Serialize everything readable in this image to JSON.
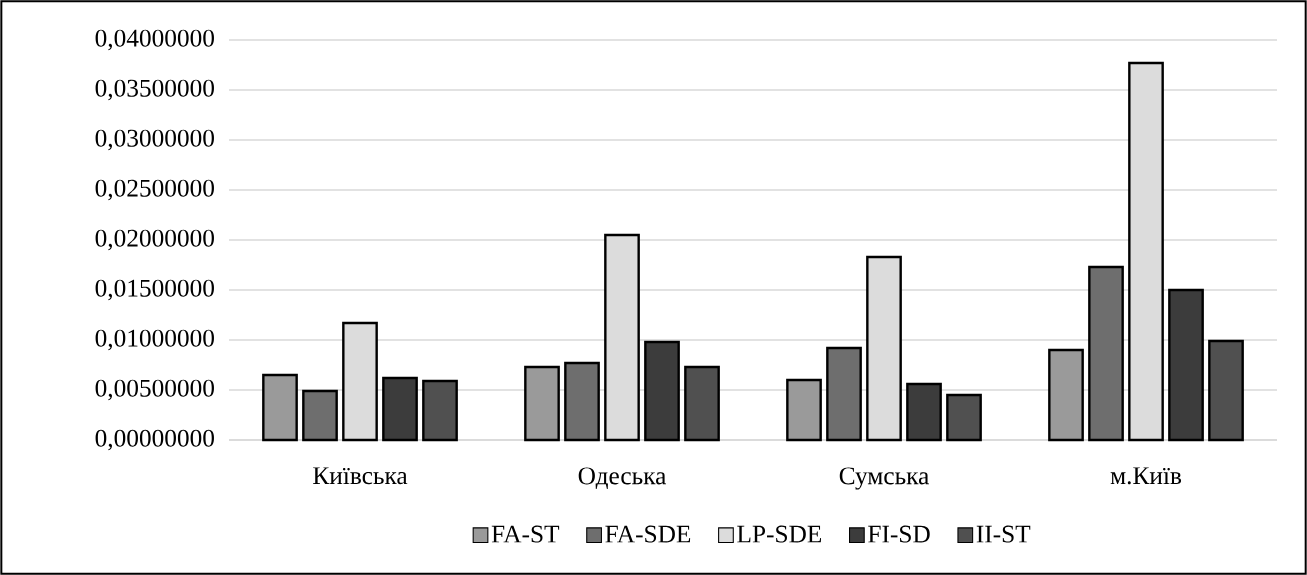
{
  "chart_data": {
    "type": "bar",
    "categories": [
      "Київська",
      "Одеська",
      "Сумська",
      "м.Київ"
    ],
    "series": [
      {
        "name": "FA-ST",
        "color": "#9a9a9a",
        "values": [
          0.0065,
          0.0073,
          0.006,
          0.009
        ]
      },
      {
        "name": "FA-SDE",
        "color": "#6e6e6e",
        "values": [
          0.0049,
          0.0077,
          0.0092,
          0.0173
        ]
      },
      {
        "name": "LP-SDE",
        "color": "#dcdcdc",
        "values": [
          0.0117,
          0.0205,
          0.0183,
          0.0377
        ]
      },
      {
        "name": "FI-SD",
        "color": "#3c3c3c",
        "values": [
          0.0062,
          0.0098,
          0.0056,
          0.015
        ]
      },
      {
        "name": "II-ST",
        "color": "#505050",
        "values": [
          0.0059,
          0.0073,
          0.0045,
          0.0099
        ]
      }
    ],
    "ylim": [
      0,
      0.04
    ],
    "yticks": [
      {
        "value": 0,
        "label": "0,00000000"
      },
      {
        "value": 0.005,
        "label": "0,00500000"
      },
      {
        "value": 0.01,
        "label": "0,01000000"
      },
      {
        "value": 0.015,
        "label": "0,01500000"
      },
      {
        "value": 0.02,
        "label": "0,02000000"
      },
      {
        "value": 0.025,
        "label": "0,02500000"
      },
      {
        "value": 0.03,
        "label": "0,03000000"
      },
      {
        "value": 0.035,
        "label": "0,03500000"
      },
      {
        "value": 0.04,
        "label": "0,04000000"
      }
    ],
    "grid": "y",
    "legend": "bottom"
  }
}
